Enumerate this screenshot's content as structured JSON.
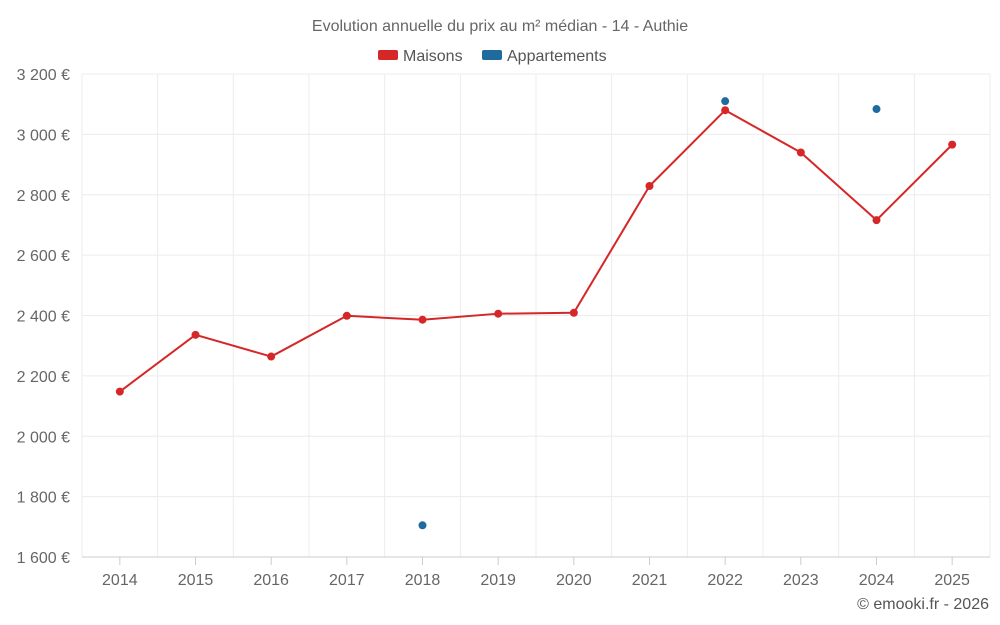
{
  "chart_data": {
    "type": "line",
    "title": "Evolution annuelle du prix au m² médian - 14 - Authie",
    "categories": [
      "2014",
      "2015",
      "2016",
      "2017",
      "2018",
      "2019",
      "2020",
      "2021",
      "2022",
      "2023",
      "2024",
      "2025"
    ],
    "ylim": [
      1600,
      3200
    ],
    "yticks": [
      1600,
      1800,
      2000,
      2200,
      2400,
      2600,
      2800,
      3000,
      3200
    ],
    "ytick_labels": [
      "1 600 €",
      "1 800 €",
      "2 000 €",
      "2 200 €",
      "2 400 €",
      "2 600 €",
      "2 800 €",
      "3 000 €",
      "3 200 €"
    ],
    "grid": true,
    "legend_position": "top-center",
    "series": [
      {
        "name": "Maisons",
        "color": "#d62728",
        "style": "line+markers",
        "values": [
          2148,
          2336,
          2264,
          2399,
          2386,
          2406,
          2409,
          2829,
          3080,
          2940,
          2716,
          2966
        ]
      },
      {
        "name": "Appartements",
        "color": "#1f6b9e",
        "style": "markers",
        "values": [
          null,
          null,
          null,
          null,
          1705,
          null,
          null,
          null,
          3110,
          null,
          3084,
          null
        ]
      }
    ]
  },
  "credit": "© emooki.fr - 2026"
}
